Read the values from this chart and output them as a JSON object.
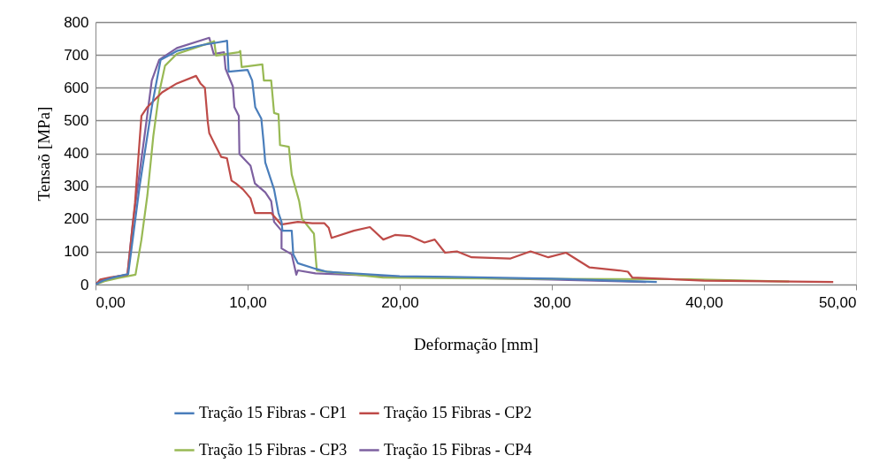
{
  "chart_data": {
    "type": "line",
    "xlabel": "Deformação [mm]",
    "ylabel": "Tensaõ  [MPa]",
    "xlim": [
      0,
      50
    ],
    "ylim": [
      0,
      800
    ],
    "xticks": [
      {
        "value": 0,
        "label": "0,00"
      },
      {
        "value": 10,
        "label": "10,00"
      },
      {
        "value": 20,
        "label": "20,00"
      },
      {
        "value": 30,
        "label": "30,00"
      },
      {
        "value": 40,
        "label": "40,00"
      },
      {
        "value": 50,
        "label": "50,00"
      }
    ],
    "yticks": [
      0,
      100,
      200,
      300,
      400,
      500,
      600,
      700,
      800
    ],
    "grid": "y",
    "legend": "bottom",
    "marker": "none",
    "line_style": "solid",
    "series": [
      {
        "name": "Tração 15 Fibras - CP1",
        "color": "#4a7ebb",
        "x": [
          0,
          0.5,
          1.2,
          2.15,
          2.9,
          3.7,
          4.28,
          5.35,
          7.0,
          8.65,
          8.75,
          10.0,
          10.3,
          10.5,
          10.9,
          11.05,
          11.16,
          11.74,
          12.03,
          12.23,
          12.29,
          12.9,
          13.0,
          13.3,
          14.46,
          15.2,
          20,
          25,
          30,
          36.9
        ],
        "values": [
          0,
          12,
          22,
          32,
          300,
          541,
          685,
          712,
          730,
          743,
          649,
          654,
          622,
          541,
          506,
          434,
          372,
          290,
          218,
          191,
          164,
          164,
          92,
          65,
          48,
          39,
          25,
          22,
          18,
          8
        ]
      },
      {
        "name": "Tração 15 Fibras - CP2",
        "color": "#be4b48",
        "x": [
          0,
          0.3,
          1.0,
          2.1,
          2.6,
          3.02,
          3.41,
          4.38,
          5.35,
          6.61,
          6.9,
          7.19,
          7.38,
          7.48,
          7.87,
          8.26,
          8.64,
          8.94,
          9.23,
          9.7,
          10.19,
          10.48,
          10.97,
          11.55,
          12.2,
          13.3,
          14.25,
          15.04,
          15.33,
          15.52,
          16.98,
          18.04,
          18.92,
          19.69,
          20.66,
          21.63,
          22.3,
          22.98,
          23.76,
          24.73,
          27.25,
          28.6,
          29.77,
          30.93,
          32.48,
          34.42,
          35.0,
          35.3,
          40,
          48.5
        ],
        "values": [
          0,
          15,
          22,
          30,
          250,
          514,
          541,
          586,
          613,
          636,
          613,
          600,
          496,
          461,
          425,
          389,
          385,
          317,
          308,
          290,
          263,
          218,
          218,
          218,
          183,
          191,
          187,
          187,
          173,
          142,
          164,
          175,
          137,
          151,
          148,
          128,
          137,
          97,
          101,
          83,
          79,
          101,
          83,
          97,
          52,
          43,
          39,
          21,
          12,
          8
        ]
      },
      {
        "name": "Tração 15 Fibras - CP3",
        "color": "#98b954",
        "x": [
          0,
          0.6,
          1.5,
          2.63,
          3.02,
          3.41,
          3.8,
          4.19,
          4.57,
          5.35,
          7.67,
          7.8,
          7.93,
          9.42,
          9.52,
          9.61,
          10.97,
          11.07,
          11.55,
          11.74,
          12.03,
          12.13,
          12.71,
          12.9,
          13.39,
          13.58,
          14.36,
          14.46,
          14.55,
          18.9,
          30,
          39.07,
          45.6
        ],
        "values": [
          0,
          10,
          20,
          30,
          137,
          272,
          452,
          586,
          667,
          703,
          739,
          742,
          698,
          708,
          712,
          663,
          671,
          622,
          622,
          523,
          519,
          425,
          420,
          335,
          254,
          200,
          155,
          92,
          43,
          21,
          17,
          16,
          9
        ]
      },
      {
        "name": "Tração 15 Fibras - CP4",
        "color": "#7d60a0",
        "x": [
          0,
          0.4,
          1.2,
          2.1,
          2.44,
          3.22,
          3.7,
          4.19,
          5.35,
          7.48,
          7.77,
          8.45,
          8.55,
          9.03,
          9.13,
          9.42,
          9.46,
          10.19,
          10.48,
          11.16,
          11.55,
          11.74,
          12.23,
          12.23,
          12.9,
          13.2,
          13.3,
          14.46,
          20,
          30,
          36.2
        ],
        "values": [
          0,
          14,
          22,
          30,
          182,
          452,
          622,
          685,
          721,
          752,
          703,
          708,
          658,
          604,
          541,
          514,
          398,
          362,
          308,
          281,
          254,
          191,
          164,
          110,
          92,
          30,
          43,
          34,
          24,
          15,
          8
        ]
      }
    ]
  }
}
